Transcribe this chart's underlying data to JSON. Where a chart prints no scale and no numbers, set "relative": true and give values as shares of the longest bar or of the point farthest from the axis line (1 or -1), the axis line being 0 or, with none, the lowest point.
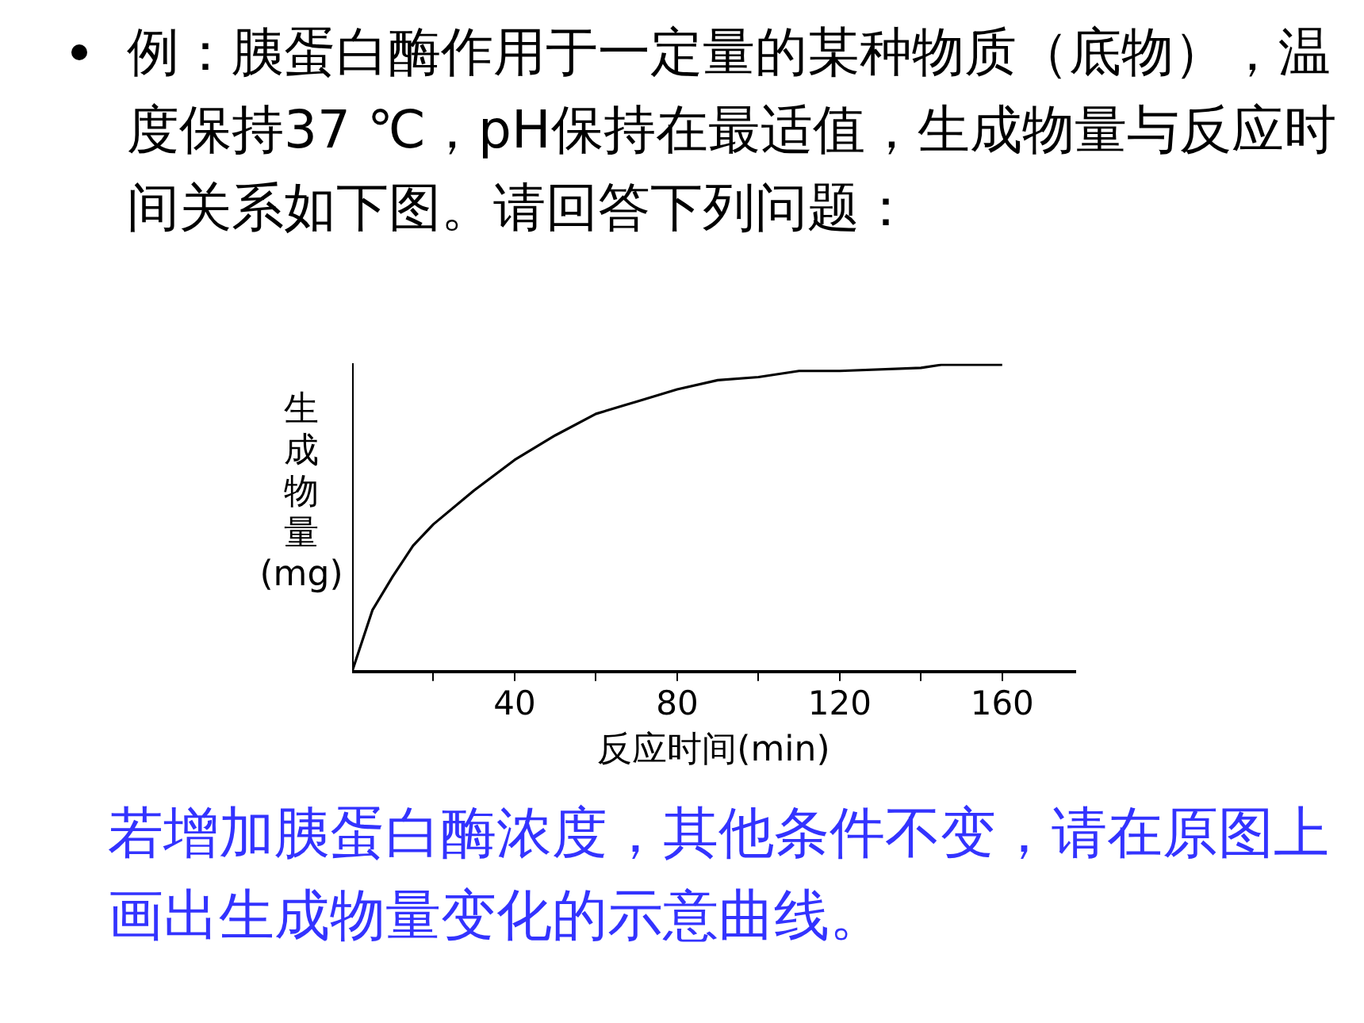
{
  "chart_data": {
    "type": "line",
    "title": "例：胰蛋白酶作用于一定量的某种物质（底物），温度保持37 ℃，pH保持在最适值，生成物量与反应时间关系如下图。请回答下列问题：",
    "xlabel": "反应时间(min)",
    "ylabel": "生成物量(mg)",
    "x": [
      0,
      5,
      10,
      15,
      20,
      30,
      40,
      50,
      60,
      70,
      80,
      90,
      100,
      110,
      120,
      140,
      145,
      160
    ],
    "series": [
      {
        "color": "#000000",
        "values": [
          0,
          0.2,
          0.31,
          0.41,
          0.48,
          0.59,
          0.69,
          0.77,
          0.84,
          0.88,
          0.92,
          0.95,
          0.96,
          0.98,
          0.98,
          0.99,
          1,
          1
        ]
      }
    ],
    "relative": true,
    "xlim": [
      0,
      178
    ],
    "xticks": [
      {
        "value": 20,
        "label": null
      },
      40,
      {
        "value": 60,
        "label": null
      },
      80,
      {
        "value": 100,
        "label": null
      },
      120,
      {
        "value": 140,
        "label": null
      },
      160
    ],
    "marker": "none",
    "line_style": "solid",
    "annotations": [
      "若增加胰蛋白酶浓度，其他条件不变，请在原图上画出生成物量变化的示意曲线。"
    ]
  }
}
